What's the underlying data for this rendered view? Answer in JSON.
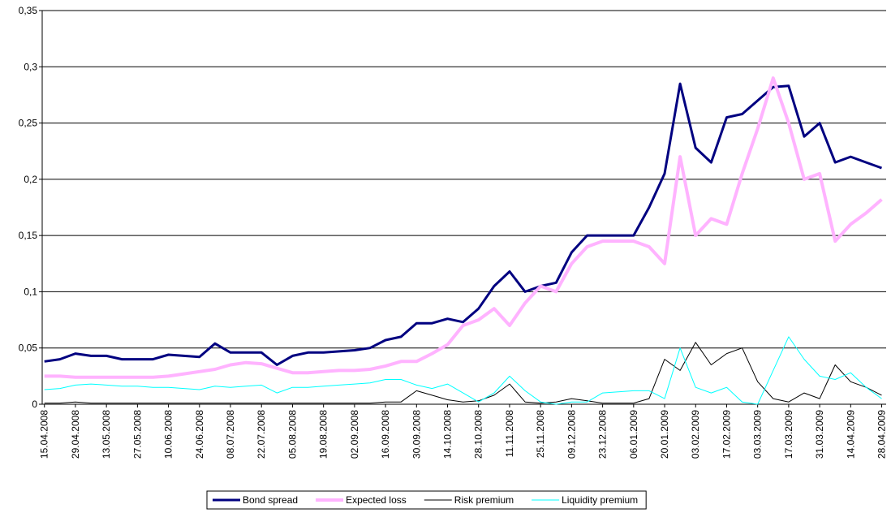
{
  "chart_data": {
    "type": "line",
    "x": [
      "2008-04-15",
      "2008-04-22",
      "2008-04-29",
      "2008-05-06",
      "2008-05-13",
      "2008-05-20",
      "2008-05-27",
      "2008-06-03",
      "2008-06-10",
      "2008-06-17",
      "2008-06-24",
      "2008-07-01",
      "2008-07-08",
      "2008-07-15",
      "2008-07-22",
      "2008-07-29",
      "2008-08-05",
      "2008-08-12",
      "2008-08-19",
      "2008-08-26",
      "2008-09-02",
      "2008-09-09",
      "2008-09-16",
      "2008-09-23",
      "2008-09-30",
      "2008-10-07",
      "2008-10-14",
      "2008-10-21",
      "2008-10-28",
      "2008-11-04",
      "2008-11-11",
      "2008-11-18",
      "2008-11-25",
      "2008-12-02",
      "2008-12-09",
      "2008-12-16",
      "2008-12-23",
      "2008-12-30",
      "2009-01-06",
      "2009-01-13",
      "2009-01-20",
      "2009-01-27",
      "2009-02-03",
      "2009-02-10",
      "2009-02-17",
      "2009-02-24",
      "2009-03-03",
      "2009-03-10",
      "2009-03-17",
      "2009-03-24",
      "2009-03-31",
      "2009-04-07",
      "2009-04-14",
      "2009-04-21",
      "2009-04-28"
    ],
    "series": [
      {
        "name": "Bond spread",
        "color": "#000080",
        "width": 3,
        "values": [
          0.038,
          0.04,
          0.045,
          0.043,
          0.043,
          0.04,
          0.04,
          0.04,
          0.044,
          0.043,
          0.042,
          0.054,
          0.046,
          0.046,
          0.046,
          0.035,
          0.043,
          0.046,
          0.046,
          0.047,
          0.048,
          0.05,
          0.057,
          0.06,
          0.072,
          0.072,
          0.076,
          0.073,
          0.085,
          0.105,
          0.118,
          0.1,
          0.105,
          0.108,
          0.135,
          0.15,
          0.15,
          0.15,
          0.15,
          0.175,
          0.205,
          0.285,
          0.228,
          0.215,
          0.255,
          0.258,
          0.27,
          0.282,
          0.283,
          0.238,
          0.25,
          0.215,
          0.22,
          0.215,
          0.21
        ]
      },
      {
        "name": "Expected loss",
        "color": "#ffb3ff",
        "width": 4,
        "values": [
          0.025,
          0.025,
          0.024,
          0.024,
          0.024,
          0.024,
          0.024,
          0.024,
          0.025,
          0.027,
          0.029,
          0.031,
          0.035,
          0.037,
          0.036,
          0.032,
          0.028,
          0.028,
          0.029,
          0.03,
          0.03,
          0.031,
          0.034,
          0.038,
          0.038,
          0.045,
          0.053,
          0.07,
          0.075,
          0.085,
          0.07,
          0.09,
          0.105,
          0.1,
          0.125,
          0.14,
          0.145,
          0.145,
          0.145,
          0.14,
          0.125,
          0.22,
          0.15,
          0.165,
          0.16,
          0.205,
          0.245,
          0.29,
          0.25,
          0.2,
          0.205,
          0.145,
          0.16,
          0.17,
          0.182
        ]
      },
      {
        "name": "Risk premium",
        "color": "#000000",
        "width": 1,
        "values": [
          0.001,
          0.001,
          0.002,
          0.001,
          0.001,
          0.001,
          0.001,
          0.001,
          0.001,
          0.001,
          0.001,
          0.001,
          0.001,
          0.001,
          0.001,
          0.001,
          0.001,
          0.001,
          0.001,
          0.001,
          0.001,
          0.001,
          0.002,
          0.002,
          0.012,
          0.008,
          0.004,
          0.002,
          0.003,
          0.008,
          0.018,
          0.002,
          0.001,
          0.002,
          0.005,
          0.003,
          0.001,
          0.001,
          0.001,
          0.005,
          0.04,
          0.03,
          0.055,
          0.035,
          0.045,
          0.05,
          0.02,
          0.005,
          0.002,
          0.01,
          0.005,
          0.035,
          0.02,
          0.015,
          0.008
        ]
      },
      {
        "name": "Liquidity premium",
        "color": "#00ffff",
        "width": 1,
        "values": [
          0.013,
          0.014,
          0.017,
          0.018,
          0.017,
          0.016,
          0.016,
          0.015,
          0.015,
          0.014,
          0.013,
          0.016,
          0.015,
          0.016,
          0.017,
          0.01,
          0.015,
          0.015,
          0.016,
          0.017,
          0.018,
          0.019,
          0.022,
          0.022,
          0.017,
          0.014,
          0.018,
          0.01,
          0.002,
          0.01,
          0.025,
          0.012,
          0.002,
          0.0,
          0.002,
          0.002,
          0.01,
          0.011,
          0.012,
          0.012,
          0.005,
          0.05,
          0.015,
          0.01,
          0.015,
          0.002,
          0.0,
          0.03,
          0.06,
          0.04,
          0.025,
          0.022,
          0.028,
          0.015,
          0.005
        ]
      }
    ],
    "xlim": [
      "2008-04-14",
      "2009-04-30"
    ],
    "xticks": [
      {
        "value": "2008-04-15",
        "label": "15.04.2008"
      },
      {
        "value": "2008-04-29",
        "label": "29.04.2008"
      },
      {
        "value": "2008-05-13",
        "label": "13.05.2008"
      },
      {
        "value": "2008-05-27",
        "label": "27.05.2008"
      },
      {
        "value": "2008-06-10",
        "label": "10.06.2008"
      },
      {
        "value": "2008-06-24",
        "label": "24.06.2008"
      },
      {
        "value": "2008-07-08",
        "label": "08.07.2008"
      },
      {
        "value": "2008-07-22",
        "label": "22.07.2008"
      },
      {
        "value": "2008-08-05",
        "label": "05.08.2008"
      },
      {
        "value": "2008-08-19",
        "label": "19.08.2008"
      },
      {
        "value": "2008-09-02",
        "label": "02.09.2008"
      },
      {
        "value": "2008-09-16",
        "label": "16.09.2008"
      },
      {
        "value": "2008-09-30",
        "label": "30.09.2008"
      },
      {
        "value": "2008-10-14",
        "label": "14.10.2008"
      },
      {
        "value": "2008-10-28",
        "label": "28.10.2008"
      },
      {
        "value": "2008-11-11",
        "label": "11.11.2008"
      },
      {
        "value": "2008-11-25",
        "label": "25.11.2008"
      },
      {
        "value": "2008-12-09",
        "label": "09.12.2008"
      },
      {
        "value": "2008-12-23",
        "label": "23.12.2008"
      },
      {
        "value": "2009-01-06",
        "label": "06.01.2009"
      },
      {
        "value": "2009-01-20",
        "label": "20.01.2009"
      },
      {
        "value": "2009-02-03",
        "label": "03.02.2009"
      },
      {
        "value": "2009-02-17",
        "label": "17.02.2009"
      },
      {
        "value": "2009-03-03",
        "label": "03.03.2009"
      },
      {
        "value": "2009-03-17",
        "label": "17.03.2009"
      },
      {
        "value": "2009-03-31",
        "label": "31.03.2009"
      },
      {
        "value": "2009-04-14",
        "label": "14.04.2009"
      },
      {
        "value": "2009-04-28",
        "label": "28.04.2009"
      }
    ],
    "ylim": [
      0,
      0.35
    ],
    "yticks": [
      0,
      {
        "value": 0.05,
        "label": "0,05"
      },
      {
        "value": 0.1,
        "label": "0,1"
      },
      {
        "value": 0.15,
        "label": "0,15"
      },
      {
        "value": 0.2,
        "label": "0,2"
      },
      {
        "value": 0.25,
        "label": "0,25"
      },
      {
        "value": 0.3,
        "label": "0,3"
      },
      {
        "value": 0.35,
        "label": "0,35"
      }
    ],
    "grid": true,
    "legend": "bottom"
  }
}
